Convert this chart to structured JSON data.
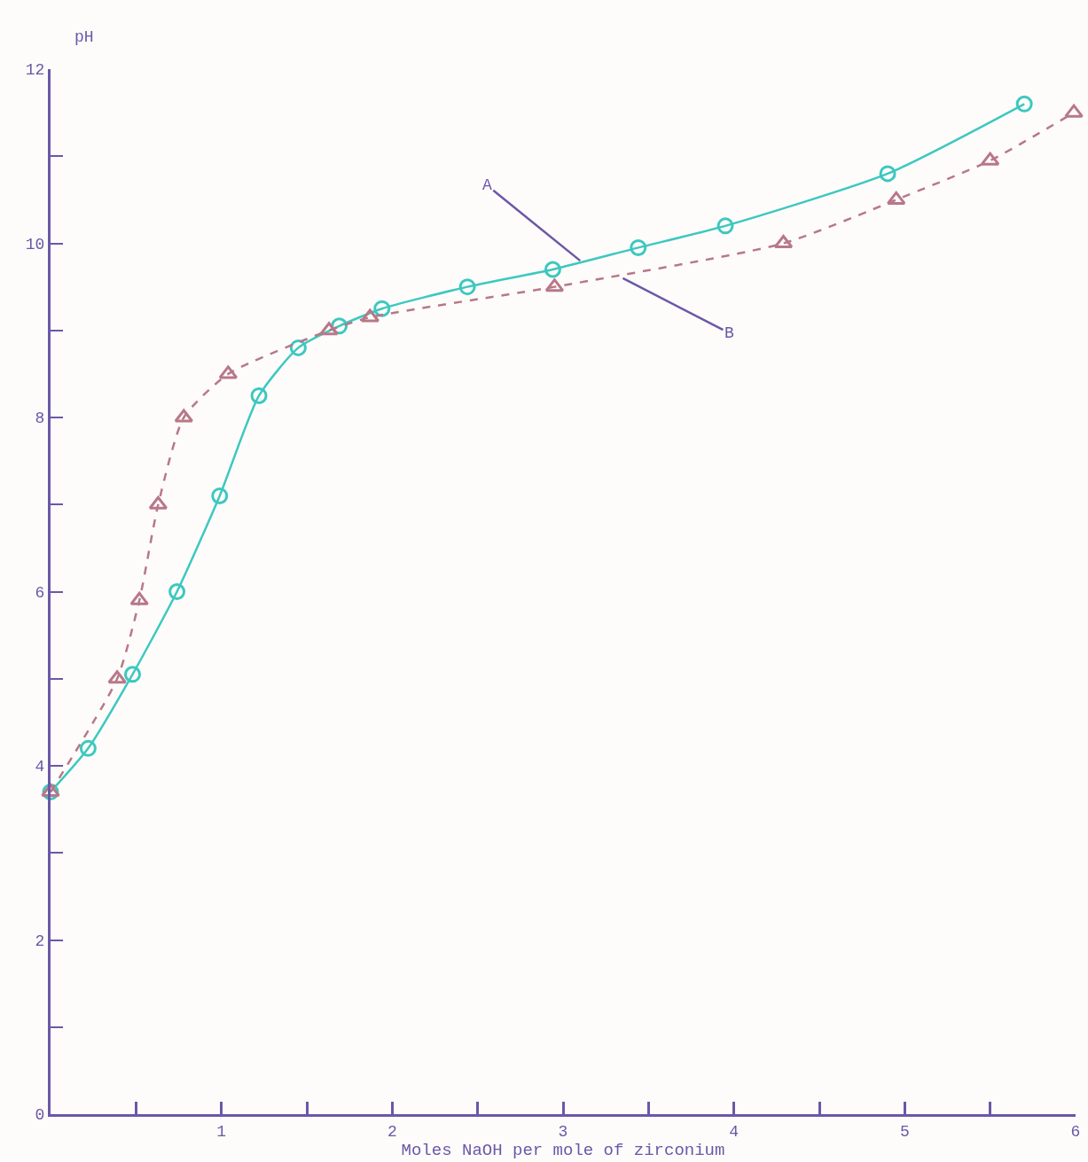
{
  "chart_data": {
    "type": "line",
    "xlabel": "Moles NaOH per mole of zirconium",
    "ylabel": "pH",
    "xlim": [
      0,
      6
    ],
    "ylim": [
      0,
      12
    ],
    "xticks": [
      {
        "value": 0.5,
        "label": null
      },
      1,
      {
        "value": 1.5,
        "label": null
      },
      2,
      {
        "value": 2.5,
        "label": null
      },
      3,
      {
        "value": 3.5,
        "label": null
      },
      4,
      {
        "value": 4.5,
        "label": null
      },
      5,
      {
        "value": 5.5,
        "label": null
      },
      6
    ],
    "yticks": [
      0,
      {
        "value": 1,
        "label": null
      },
      2,
      {
        "value": 3,
        "label": null
      },
      4,
      {
        "value": 5,
        "label": null
      },
      6,
      {
        "value": 7,
        "label": null
      },
      8,
      {
        "value": 9,
        "label": null
      },
      10,
      {
        "value": 11,
        "label": null
      },
      12
    ],
    "grid": false,
    "series": [
      {
        "color": "#3cc8c0",
        "marker": "circle",
        "line_style": "solid",
        "x": [
          0,
          0.22,
          0.48,
          0.74,
          0.99,
          1.22,
          1.45,
          1.69,
          1.94,
          2.44,
          2.94,
          3.44,
          3.95,
          4.9,
          5.7
        ],
        "values": [
          3.7,
          4.2,
          5.05,
          6.0,
          7.1,
          8.25,
          8.8,
          9.05,
          9.25,
          9.5,
          9.7,
          9.95,
          10.2,
          10.8,
          11.6
        ]
      },
      {
        "color": "#b87888",
        "marker": "triangle",
        "line_style": "dashed",
        "x": [
          0,
          0.39,
          0.52,
          0.63,
          0.78,
          1.04,
          1.63,
          1.87,
          2.95,
          4.29,
          4.95,
          5.5,
          5.99
        ],
        "values": [
          3.7,
          5.0,
          5.9,
          7.0,
          8.0,
          8.5,
          9.0,
          9.15,
          9.5,
          10.0,
          10.5,
          10.95,
          11.5
        ]
      }
    ],
    "annotations": [
      {
        "text": "A",
        "x": 3.1,
        "y": 9.8
      },
      {
        "text": "B",
        "x": 3.35,
        "y": 9.6
      }
    ]
  }
}
